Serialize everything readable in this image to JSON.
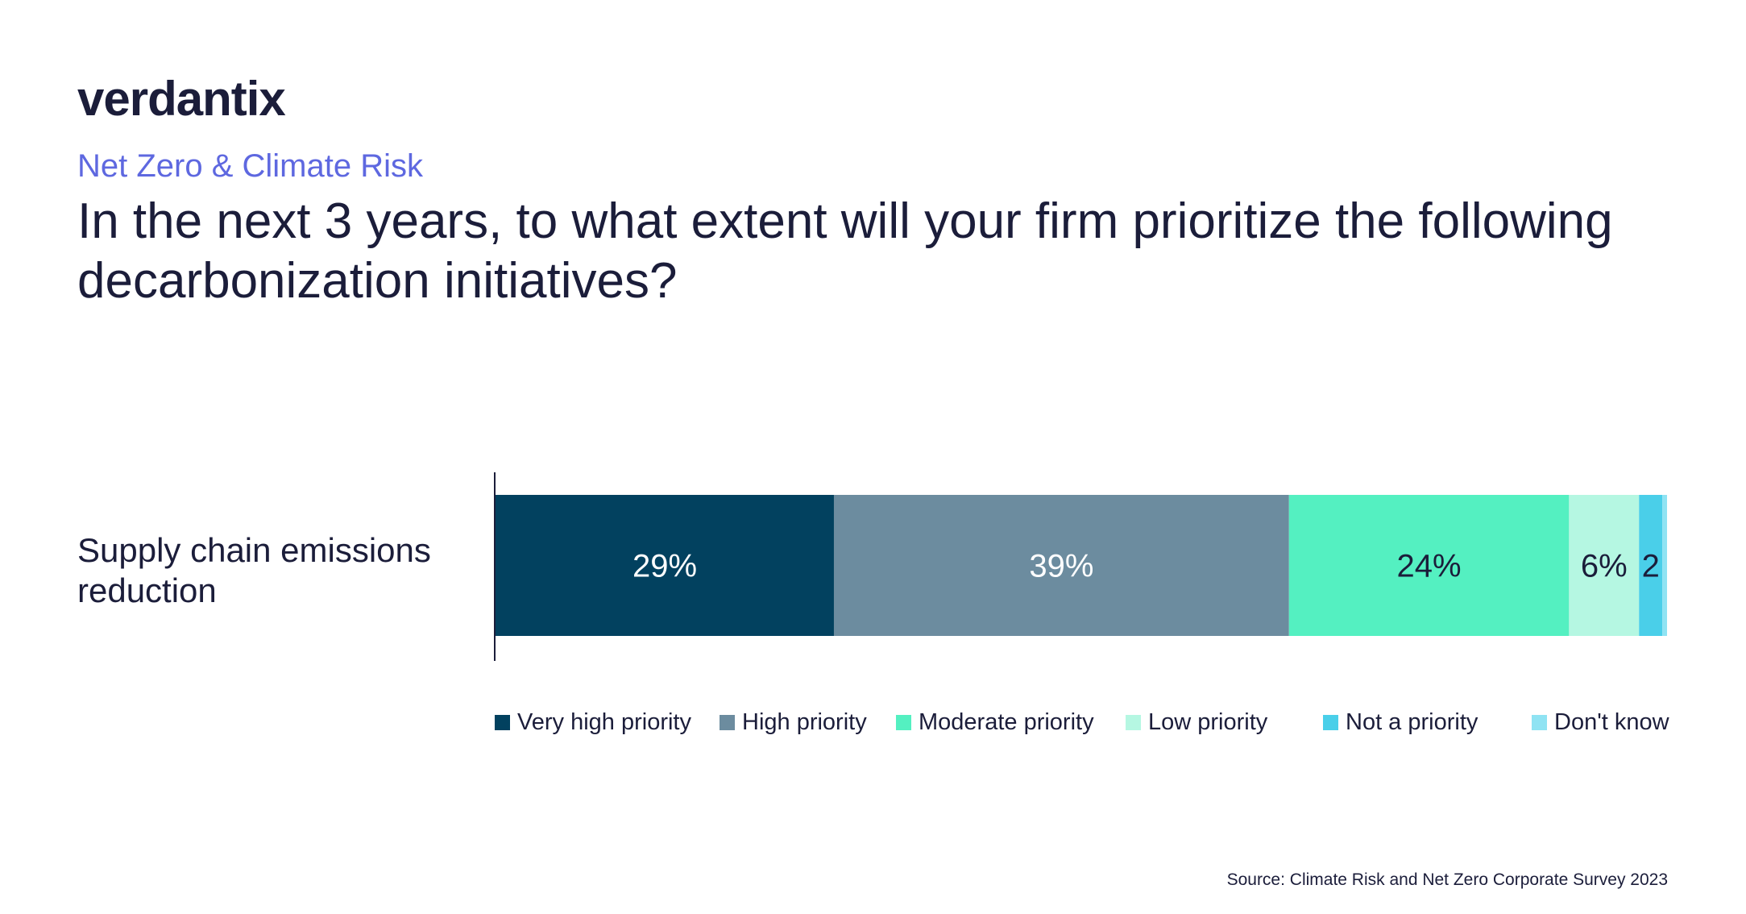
{
  "brand": {
    "logo_text": "verdantix"
  },
  "header": {
    "subtitle": "Net Zero & Climate Risk",
    "title": "In the next 3 years, to what extent will your firm prioritize the following decarbonization initiatives?"
  },
  "chart_data": {
    "type": "bar",
    "orientation": "horizontal",
    "stacked": true,
    "categories": [
      "Supply chain emissions  reduction"
    ],
    "series": [
      {
        "name": "Very high priority",
        "values": [
          29
        ],
        "label": "29%",
        "color": "#02415f",
        "label_color": "#ffffff"
      },
      {
        "name": "High priority",
        "values": [
          39
        ],
        "label": "39%",
        "color": "#6c8c9f",
        "label_color": "#ffffff"
      },
      {
        "name": "Moderate priority",
        "values": [
          24
        ],
        "label": "24%",
        "color": "#54f0c1",
        "label_color": "#1b1d3a"
      },
      {
        "name": "Low priority",
        "values": [
          6
        ],
        "label": "6%",
        "color": "#b5f7e2",
        "label_color": "#1b1d3a"
      },
      {
        "name": "Not a priority",
        "values": [
          2
        ],
        "label": "2",
        "color": "#4acfe9",
        "label_color": "#1b1d3a"
      },
      {
        "name": "Don't know",
        "values": [
          0.4
        ],
        "label": "",
        "color": "#8fe3f3",
        "label_color": "#1b1d3a"
      }
    ],
    "xlim": [
      0,
      100
    ],
    "legend_position": "bottom",
    "grid": false
  },
  "source": "Source: Climate Risk and Net Zero Corporate Survey 2023"
}
